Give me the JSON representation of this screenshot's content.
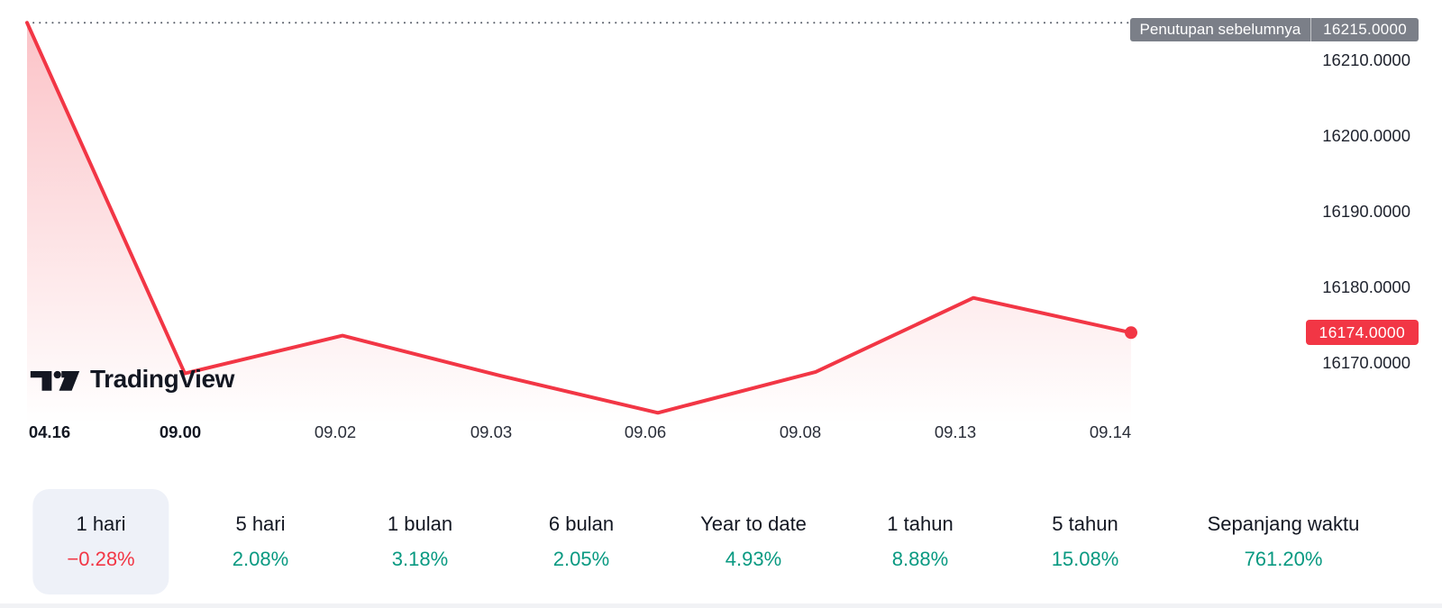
{
  "brand": {
    "name": "TradingView"
  },
  "chart_data": {
    "type": "area",
    "categories": [
      "04.16",
      "09.00",
      "09.02",
      "09.03",
      "09.06",
      "09.08",
      "09.13",
      "09.14"
    ],
    "values": [
      16215.0,
      16168.6,
      16173.6,
      16168.3,
      16163.4,
      16168.8,
      16178.6,
      16174.0
    ],
    "bold_x_labels": [
      "04.16",
      "09.00"
    ],
    "y_ticks": [
      "16210.0000",
      "16200.0000",
      "16190.0000",
      "16180.0000",
      "16170.0000"
    ],
    "ylim": [
      16162,
      16218
    ],
    "previous_close": 16215.0,
    "prev_close_label": "Penutupan sebelumnya",
    "prev_close_value_label": "16215.0000",
    "last_price": 16174.0,
    "last_price_label": "16174.0000",
    "grid": "off",
    "legend": "none"
  },
  "periods": [
    {
      "label": "1 hari",
      "value": "−0.28%",
      "direction": "down",
      "selected": true
    },
    {
      "label": "5 hari",
      "value": "2.08%",
      "direction": "up",
      "selected": false
    },
    {
      "label": "1 bulan",
      "value": "3.18%",
      "direction": "up",
      "selected": false
    },
    {
      "label": "6 bulan",
      "value": "2.05%",
      "direction": "up",
      "selected": false
    },
    {
      "label": "Year to date",
      "value": "4.93%",
      "direction": "up",
      "selected": false
    },
    {
      "label": "1 tahun",
      "value": "8.88%",
      "direction": "up",
      "selected": false
    },
    {
      "label": "5 tahun",
      "value": "15.08%",
      "direction": "up",
      "selected": false
    },
    {
      "label": "Sepanjang waktu",
      "value": "761.20%",
      "direction": "up",
      "selected": false
    }
  ],
  "colors": {
    "negative": "#f23645",
    "positive": "#089981",
    "prev_close_badge_bg": "#7b7f88",
    "selected_tab_bg": "#eef1f8",
    "dotted_line": "#555b66"
  }
}
